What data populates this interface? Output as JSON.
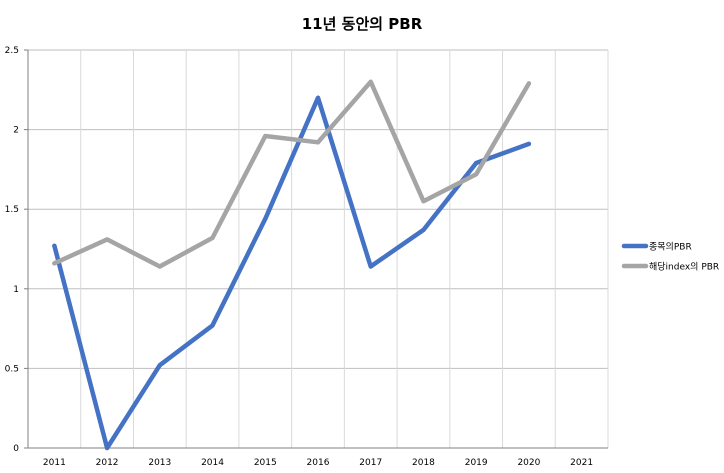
{
  "chart_data": {
    "type": "line",
    "title": "11년 동안의 PBR",
    "xlabel": "",
    "ylabel": "",
    "categories": [
      "2011",
      "2012",
      "2013",
      "2014",
      "2015",
      "2016",
      "2017",
      "2018",
      "2019",
      "2020",
      "2021"
    ],
    "ylim": [
      0,
      2.5
    ],
    "yticks": [
      "0",
      "0.5",
      "1",
      "1.5",
      "2",
      "2.5"
    ],
    "grid": true,
    "legend_position": "right",
    "series": [
      {
        "name": "종목의PBR",
        "color": "#4472C4",
        "values": [
          1.27,
          0.0,
          0.52,
          0.77,
          1.44,
          2.2,
          1.14,
          1.37,
          1.79,
          1.91,
          null
        ]
      },
      {
        "name": "해당index의 PBR",
        "color": "#A5A5A5",
        "values": [
          1.16,
          1.31,
          1.14,
          1.32,
          1.96,
          1.92,
          2.3,
          1.55,
          1.72,
          2.29,
          null
        ]
      }
    ]
  }
}
